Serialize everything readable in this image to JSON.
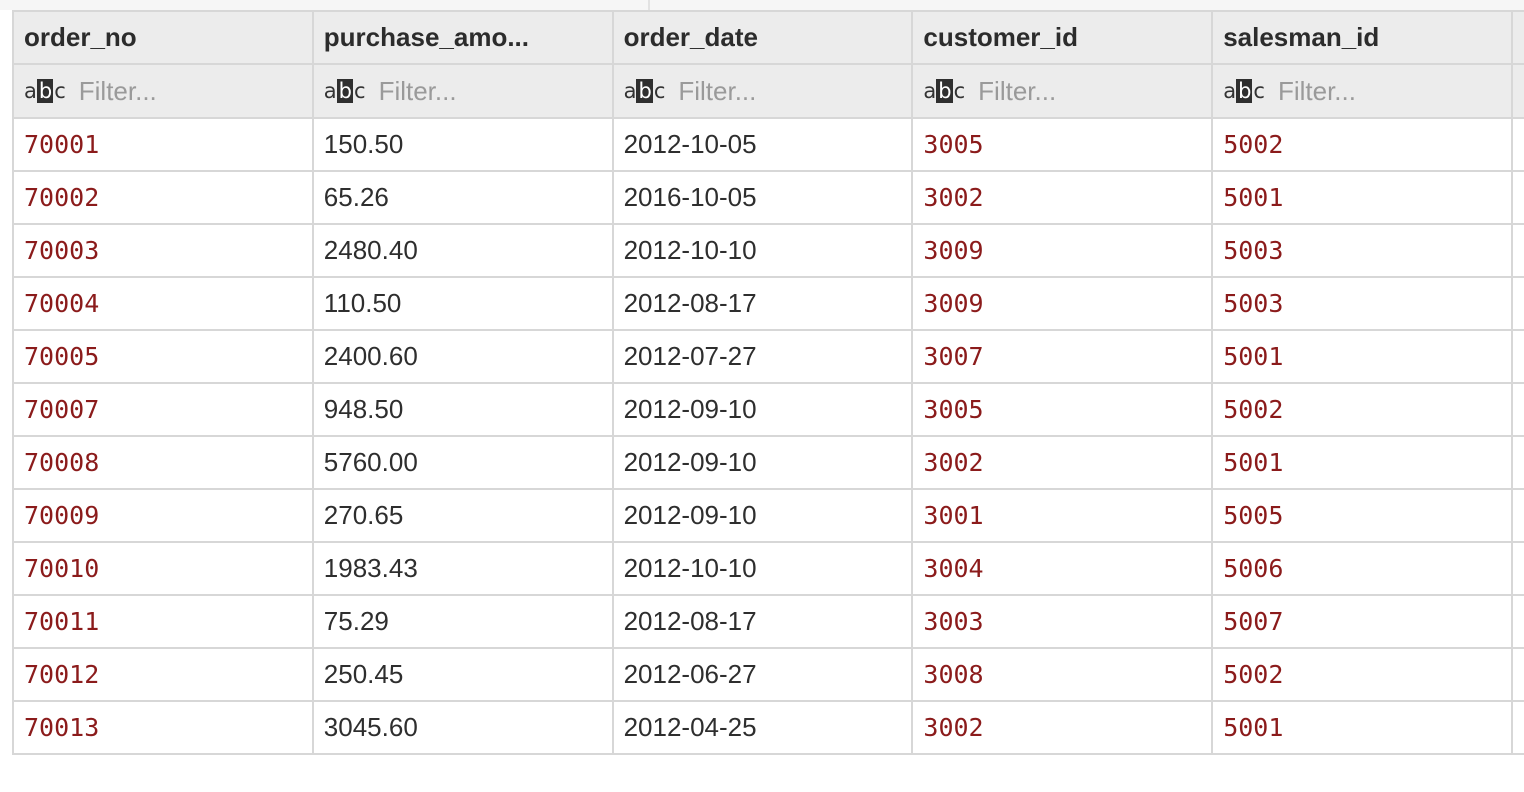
{
  "columns": [
    {
      "label": "order_no"
    },
    {
      "label": "purchase_amo..."
    },
    {
      "label": "order_date"
    },
    {
      "label": "customer_id"
    },
    {
      "label": "salesman_id"
    }
  ],
  "filter": {
    "placeholder": "Filter...",
    "type_icon": "abc-text-type-icon"
  },
  "rows": [
    [
      "70001",
      "150.50",
      "2012-10-05",
      "3005",
      "5002"
    ],
    [
      "70002",
      "65.26",
      "2016-10-05",
      "3002",
      "5001"
    ],
    [
      "70003",
      "2480.40",
      "2012-10-10",
      "3009",
      "5003"
    ],
    [
      "70004",
      "110.50",
      "2012-08-17",
      "3009",
      "5003"
    ],
    [
      "70005",
      "2400.60",
      "2012-07-27",
      "3007",
      "5001"
    ],
    [
      "70007",
      "948.50",
      "2012-09-10",
      "3005",
      "5002"
    ],
    [
      "70008",
      "5760.00",
      "2012-09-10",
      "3002",
      "5001"
    ],
    [
      "70009",
      "270.65",
      "2012-09-10",
      "3001",
      "5005"
    ],
    [
      "70010",
      "1983.43",
      "2012-10-10",
      "3004",
      "5006"
    ],
    [
      "70011",
      "75.29",
      "2012-08-17",
      "3003",
      "5007"
    ],
    [
      "70012",
      "250.45",
      "2012-06-27",
      "3008",
      "5002"
    ],
    [
      "70013",
      "3045.60",
      "2012-04-25",
      "3002",
      "5001"
    ]
  ],
  "colors": {
    "numeric_text": "#8b1b1b",
    "plain_text": "#2e2e2e",
    "header_bg": "#ececec",
    "grid_line": "#d7d7d7"
  }
}
